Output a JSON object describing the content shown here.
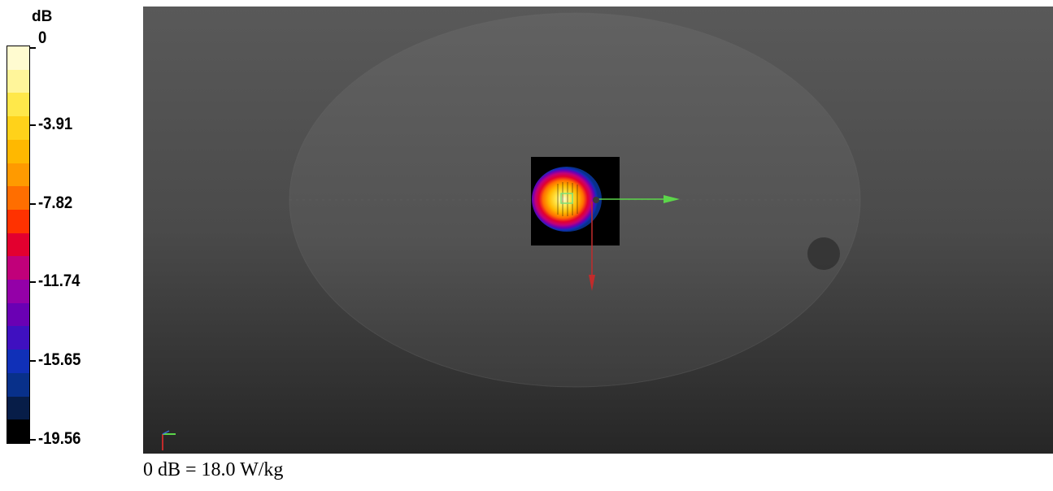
{
  "legend": {
    "unit": "dB",
    "ticks": [
      "0",
      "-3.91",
      "-7.82",
      "-11.74",
      "-15.65",
      "-19.56"
    ],
    "colors": [
      "#fffbd0",
      "#fff59a",
      "#ffe84a",
      "#ffd21a",
      "#ffb800",
      "#ff9a00",
      "#ff6e00",
      "#ff3200",
      "#e3002f",
      "#c1007a",
      "#9400a8",
      "#6a00b4",
      "#3f10c0",
      "#1030b8",
      "#08308a",
      "#071d48",
      "#000000"
    ]
  },
  "viewport": {
    "background_top": "#595959",
    "background_bottom": "#262626",
    "axis_x_color": "#5cd64a",
    "axis_y_color": "#c22b2b"
  },
  "caption": "0 dB = 18.0 W/kg"
}
